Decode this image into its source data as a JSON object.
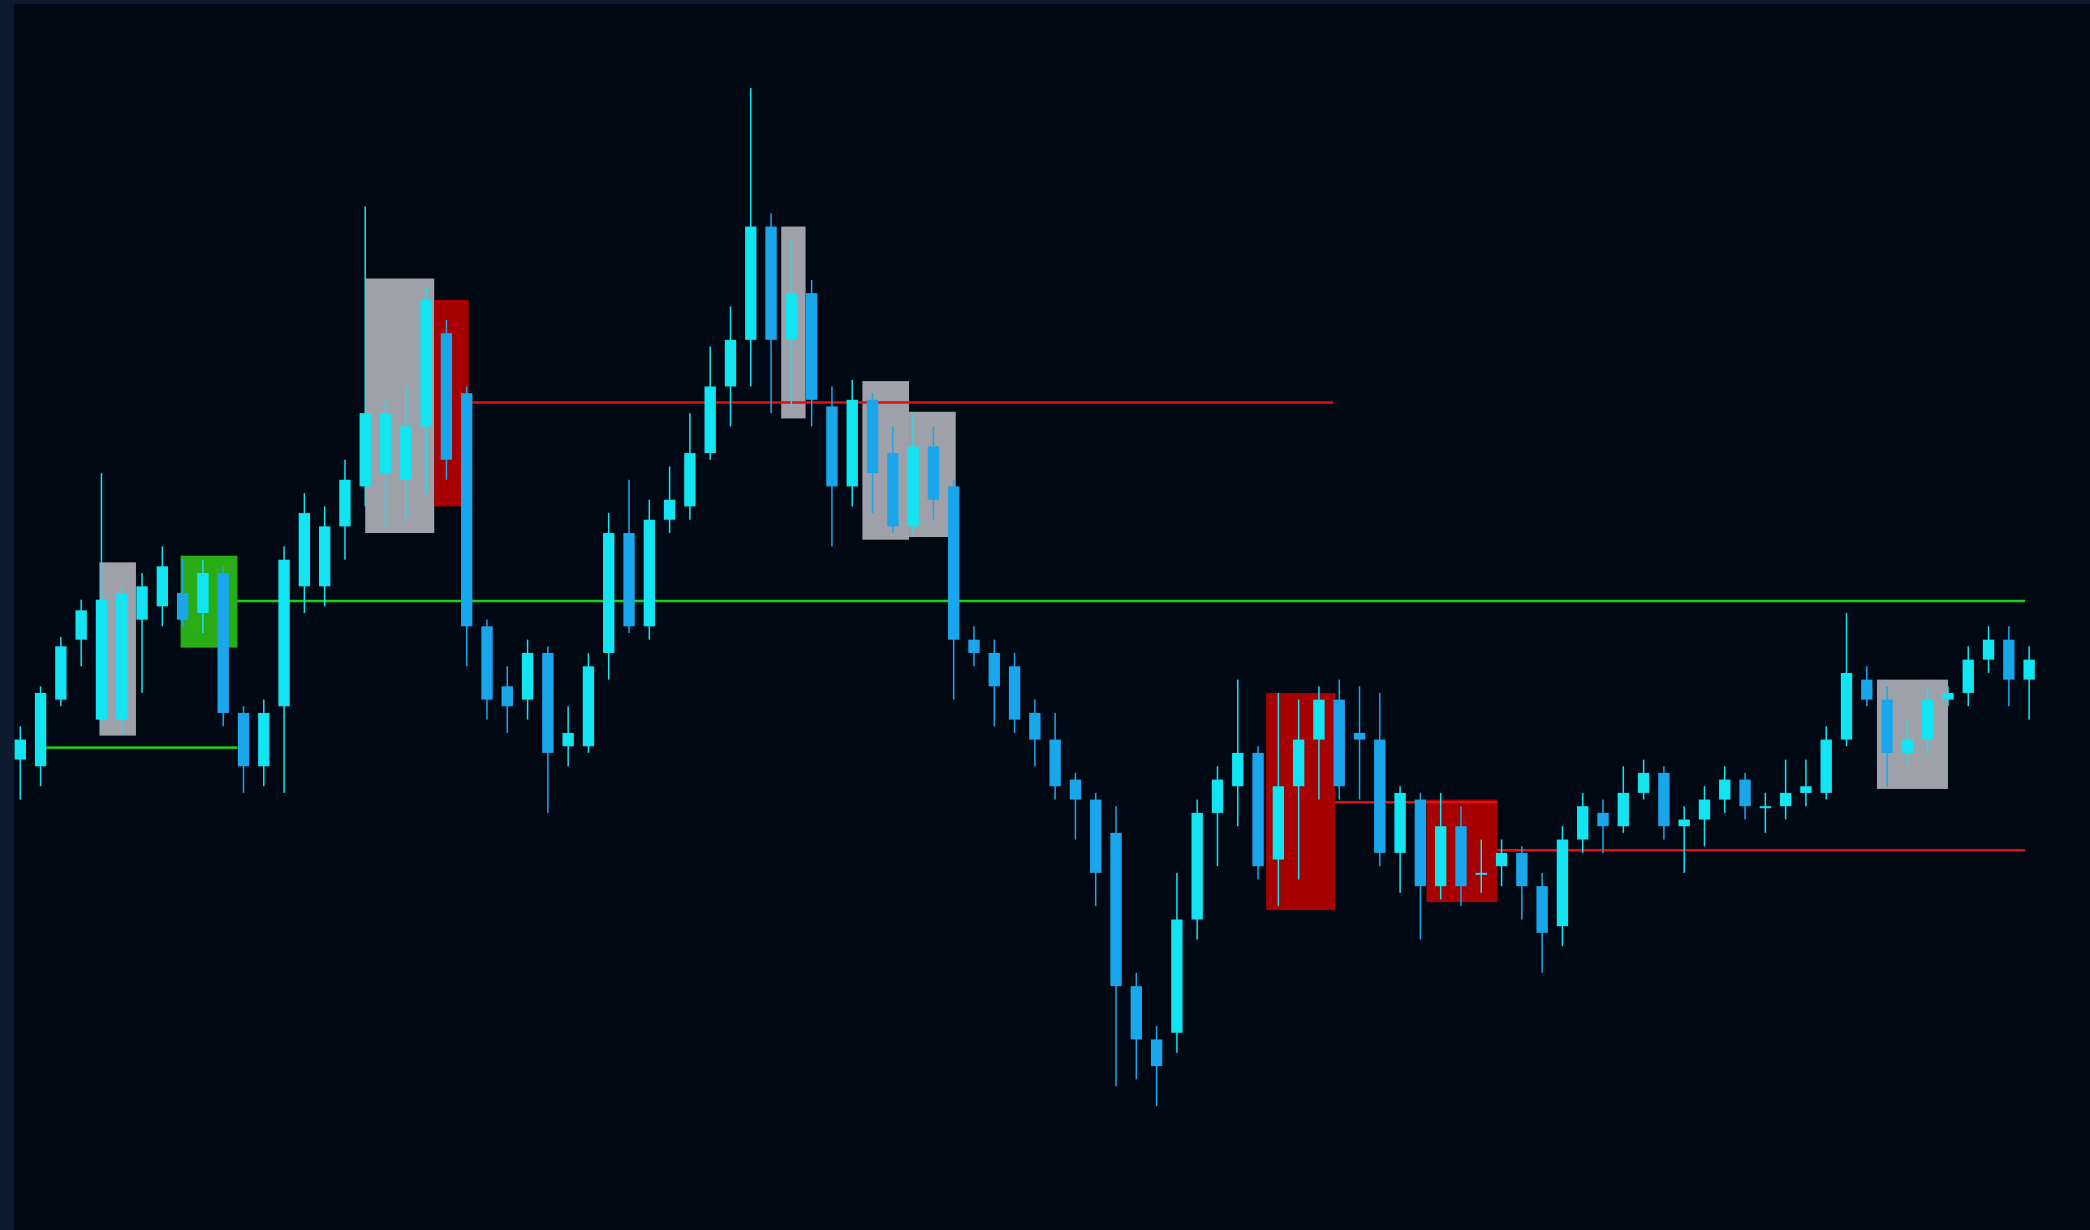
{
  "chart_data": {
    "type": "candlestick",
    "xlim": [
      -1,
      102
    ],
    "ylim": [
      0,
      923
    ],
    "up_color": "#12e4f2",
    "down_color": "#1aa6ea",
    "open": [
      353,
      348,
      398,
      443,
      383,
      383,
      458,
      468,
      478,
      463,
      493,
      388,
      348,
      393,
      483,
      483,
      528,
      558,
      568,
      563,
      603,
      673,
      628,
      453,
      408,
      398,
      433,
      363,
      363,
      433,
      523,
      453,
      533,
      543,
      583,
      633,
      668,
      753,
      668,
      703,
      618,
      558,
      623,
      583,
      528,
      588,
      558,
      443,
      433,
      423,
      388,
      368,
      338,
      323,
      298,
      183,
      143,
      148,
      233,
      313,
      333,
      358,
      278,
      333,
      368,
      398,
      373,
      368,
      283,
      323,
      258,
      303,
      268,
      273,
      283,
      258,
      228,
      293,
      313,
      303,
      328,
      343,
      303,
      308,
      323,
      338,
      318,
      318,
      328,
      328,
      368,
      413,
      398,
      358,
      368,
      398,
      403,
      428,
      443,
      413
    ],
    "high": [
      378,
      408,
      445,
      473,
      568,
      483,
      493,
      513,
      503,
      503,
      498,
      393,
      398,
      513,
      553,
      543,
      578,
      768,
      623,
      633,
      708,
      683,
      633,
      458,
      423,
      443,
      438,
      393,
      433,
      538,
      563,
      548,
      573,
      613,
      663,
      693,
      857,
      763,
      743,
      713,
      633,
      638,
      628,
      603,
      613,
      603,
      563,
      453,
      443,
      433,
      398,
      388,
      343,
      328,
      318,
      193,
      153,
      268,
      323,
      348,
      413,
      363,
      403,
      398,
      408,
      413,
      408,
      403,
      333,
      328,
      328,
      318,
      293,
      293,
      288,
      268,
      303,
      328,
      323,
      348,
      353,
      348,
      318,
      333,
      348,
      343,
      328,
      353,
      353,
      378,
      463,
      423,
      408,
      383,
      408,
      408,
      438,
      453,
      453,
      438
    ],
    "low": [
      323,
      333,
      393,
      423,
      378,
      373,
      403,
      453,
      453,
      448,
      378,
      328,
      333,
      328,
      463,
      468,
      503,
      543,
      528,
      533,
      553,
      563,
      423,
      383,
      373,
      383,
      313,
      348,
      358,
      413,
      448,
      443,
      523,
      533,
      578,
      603,
      633,
      613,
      618,
      603,
      513,
      543,
      538,
      523,
      523,
      533,
      398,
      423,
      378,
      373,
      348,
      323,
      293,
      243,
      108,
      113,
      93,
      133,
      218,
      273,
      303,
      263,
      243,
      263,
      323,
      323,
      323,
      273,
      253,
      218,
      248,
      243,
      253,
      258,
      233,
      193,
      213,
      283,
      283,
      298,
      323,
      293,
      268,
      288,
      313,
      308,
      298,
      308,
      318,
      323,
      363,
      393,
      333,
      348,
      358,
      393,
      393,
      418,
      393,
      383
    ],
    "close": [
      368,
      403,
      438,
      465,
      473,
      478,
      483,
      498,
      458,
      493,
      388,
      348,
      388,
      503,
      538,
      528,
      563,
      613,
      613,
      603,
      698,
      578,
      453,
      398,
      393,
      433,
      358,
      373,
      423,
      523,
      453,
      533,
      548,
      583,
      633,
      668,
      753,
      668,
      703,
      623,
      558,
      623,
      568,
      528,
      588,
      548,
      443,
      433,
      408,
      383,
      368,
      333,
      323,
      268,
      183,
      143,
      123,
      233,
      313,
      338,
      358,
      273,
      333,
      368,
      398,
      333,
      368,
      283,
      328,
      258,
      303,
      258,
      268,
      283,
      258,
      223,
      293,
      318,
      303,
      328,
      343,
      303,
      308,
      323,
      338,
      318,
      318,
      328,
      333,
      368,
      418,
      398,
      358,
      368,
      398,
      403,
      428,
      443,
      413,
      428
    ],
    "zones": [
      {
        "x0": 3.9,
        "x1": 5.7,
        "top": 501,
        "bottom": 371,
        "color": "#a7aab2"
      },
      {
        "x0": 7.9,
        "x1": 10.7,
        "top": 506,
        "bottom": 437,
        "color": "#2bb516"
      },
      {
        "x0": 17.0,
        "x1": 20.4,
        "top": 714,
        "bottom": 523,
        "color": "#a7aab2"
      },
      {
        "x0": 20.4,
        "x1": 22.1,
        "top": 698,
        "bottom": 543,
        "color": "#b00000"
      },
      {
        "x0": 37.5,
        "x1": 38.7,
        "top": 753,
        "bottom": 609,
        "color": "#a7aab2"
      },
      {
        "x0": 41.5,
        "x1": 43.8,
        "top": 637,
        "bottom": 518,
        "color": "#a7aab2"
      },
      {
        "x0": 43.8,
        "x1": 46.1,
        "top": 614,
        "bottom": 520,
        "color": "#a7aab2"
      },
      {
        "x0": 61.4,
        "x1": 64.8,
        "top": 403,
        "bottom": 240,
        "color": "#b00000"
      },
      {
        "x0": 69.3,
        "x1": 72.8,
        "top": 323,
        "bottom": 246,
        "color": "#b00000"
      },
      {
        "x0": 91.5,
        "x1": 95.0,
        "top": 413,
        "bottom": 331,
        "color": "#a7aab2"
      }
    ],
    "levels": [
      {
        "value": 621,
        "x0": 22.1,
        "x1": 64.7,
        "color": "#e01010"
      },
      {
        "value": 472,
        "x0": 10.7,
        "x1": 98.8,
        "color": "#1ed01e"
      },
      {
        "value": 362,
        "x0": 1.2,
        "x1": 10.7,
        "color": "#1ed01e"
      },
      {
        "value": 321,
        "x0": 64.8,
        "x1": 72.8,
        "color": "#e01010"
      },
      {
        "value": 285,
        "x0": 72.8,
        "x1": 98.8,
        "color": "#e01010"
      }
    ]
  }
}
